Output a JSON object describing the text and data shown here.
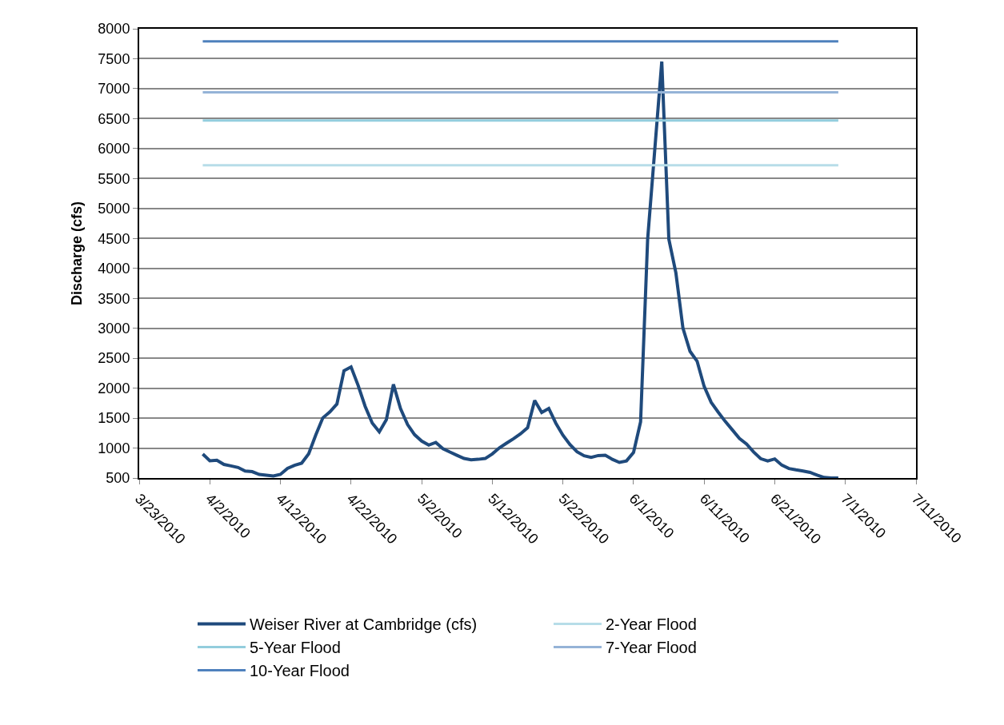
{
  "chart_data": {
    "type": "line",
    "ylabel": "Discharge (cfs)",
    "xlim": [
      "2010-03-23",
      "2010-07-11"
    ],
    "xticks": [
      {
        "value": "2010-03-23",
        "label": "3/23/2010"
      },
      {
        "value": "2010-04-02",
        "label": "4/2/2010"
      },
      {
        "value": "2010-04-12",
        "label": "4/12/2010"
      },
      {
        "value": "2010-04-22",
        "label": "4/22/2010"
      },
      {
        "value": "2010-05-02",
        "label": "5/2/2010"
      },
      {
        "value": "2010-05-12",
        "label": "5/12/2010"
      },
      {
        "value": "2010-05-22",
        "label": "5/22/2010"
      },
      {
        "value": "2010-06-01",
        "label": "6/1/2010"
      },
      {
        "value": "2010-06-11",
        "label": "6/11/2010"
      },
      {
        "value": "2010-06-21",
        "label": "6/21/2010"
      },
      {
        "value": "2010-07-01",
        "label": "7/1/2010"
      },
      {
        "value": "2010-07-11",
        "label": "7/11/2010"
      }
    ],
    "ylim": [
      500,
      8000
    ],
    "yticks": [
      500,
      1000,
      1500,
      2000,
      2500,
      3000,
      3500,
      4000,
      4500,
      5000,
      5500,
      6000,
      6500,
      7000,
      7500,
      8000
    ],
    "grid": "y",
    "legend": "bottom",
    "marker": "none",
    "line_style": "solid",
    "series": [
      {
        "name": "Weiser River at Cambridge (cfs)",
        "color": "#1f4a7c",
        "x": [
          "2010-04-01",
          "2010-04-02",
          "2010-04-03",
          "2010-04-04",
          "2010-04-05",
          "2010-04-06",
          "2010-04-07",
          "2010-04-08",
          "2010-04-09",
          "2010-04-10",
          "2010-04-11",
          "2010-04-12",
          "2010-04-13",
          "2010-04-14",
          "2010-04-15",
          "2010-04-16",
          "2010-04-17",
          "2010-04-18",
          "2010-04-19",
          "2010-04-20",
          "2010-04-21",
          "2010-04-22",
          "2010-04-23",
          "2010-04-24",
          "2010-04-25",
          "2010-04-26",
          "2010-04-27",
          "2010-04-28",
          "2010-04-29",
          "2010-04-30",
          "2010-05-01",
          "2010-05-02",
          "2010-05-03",
          "2010-05-04",
          "2010-05-05",
          "2010-05-06",
          "2010-05-07",
          "2010-05-08",
          "2010-05-09",
          "2010-05-10",
          "2010-05-11",
          "2010-05-12",
          "2010-05-13",
          "2010-05-14",
          "2010-05-15",
          "2010-05-16",
          "2010-05-17",
          "2010-05-18",
          "2010-05-19",
          "2010-05-20",
          "2010-05-21",
          "2010-05-22",
          "2010-05-23",
          "2010-05-24",
          "2010-05-25",
          "2010-05-26",
          "2010-05-27",
          "2010-05-28",
          "2010-05-29",
          "2010-05-30",
          "2010-05-31",
          "2010-06-01",
          "2010-06-02",
          "2010-06-03",
          "2010-06-04",
          "2010-06-05",
          "2010-06-06",
          "2010-06-07",
          "2010-06-08",
          "2010-06-09",
          "2010-06-10",
          "2010-06-11",
          "2010-06-12",
          "2010-06-13",
          "2010-06-14",
          "2010-06-15",
          "2010-06-16",
          "2010-06-17",
          "2010-06-18",
          "2010-06-19",
          "2010-06-20",
          "2010-06-21",
          "2010-06-22",
          "2010-06-23",
          "2010-06-24",
          "2010-06-25",
          "2010-06-26",
          "2010-06-27",
          "2010-06-28",
          "2010-06-29",
          "2010-06-30"
        ],
        "values": [
          900,
          787,
          797,
          727,
          702,
          676,
          616,
          606,
          560,
          548,
          535,
          560,
          661,
          712,
          747,
          903,
          1216,
          1503,
          1604,
          1735,
          2290,
          2355,
          2047,
          1695,
          1417,
          1270,
          1473,
          2063,
          1661,
          1393,
          1223,
          1116,
          1049,
          1094,
          991,
          933,
          879,
          826,
          804,
          812,
          826,
          902,
          1004,
          1080,
          1156,
          1237,
          1339,
          1795,
          1594,
          1661,
          1415,
          1214,
          1058,
          938,
          871,
          844,
          875,
          879,
          812,
          760,
          785,
          925,
          1438,
          4487,
          5970,
          7453,
          4487,
          3924,
          3000,
          2615,
          2451,
          2029,
          1762,
          1598,
          1443,
          1302,
          1161,
          1067,
          936,
          823,
          786,
          818,
          715,
          659,
          636,
          617,
          594,
          547,
          509,
          500,
          500
        ]
      },
      {
        "name": "2-Year Flood",
        "color": "#b7dde8",
        "x": [
          "2010-04-01",
          "2010-06-30"
        ],
        "values": [
          5720,
          5720
        ]
      },
      {
        "name": "5-Year Flood",
        "color": "#93cddd",
        "x": [
          "2010-04-01",
          "2010-06-30"
        ],
        "values": [
          6470,
          6470
        ]
      },
      {
        "name": "7-Year Flood",
        "color": "#95b3d7",
        "x": [
          "2010-04-01",
          "2010-06-30"
        ],
        "values": [
          6940,
          6940
        ]
      },
      {
        "name": "10-Year Flood",
        "color": "#4f81bd",
        "x": [
          "2010-04-01",
          "2010-06-30"
        ],
        "values": [
          7790,
          7790
        ]
      }
    ]
  }
}
